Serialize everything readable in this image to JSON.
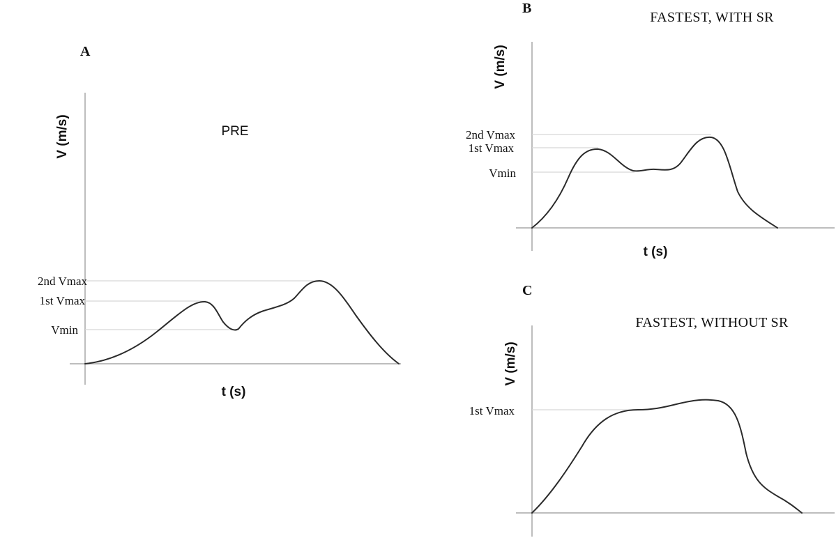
{
  "chart_data": [
    {
      "panel": "A",
      "type": "line",
      "title": "PRE",
      "xlabel": "t (s)",
      "ylabel": "V (m/s)",
      "reference_lines": [
        {
          "label": "2nd Vmax"
        },
        {
          "label": "1st Vmax"
        },
        {
          "label": "Vmin"
        }
      ],
      "grid": false
    },
    {
      "panel": "B",
      "type": "line",
      "title": "FASTEST, WITH SR",
      "xlabel": "t (s)",
      "ylabel": "V (m/s)",
      "reference_lines": [
        {
          "label": "2nd Vmax"
        },
        {
          "label": "1st Vmax"
        },
        {
          "label": "Vmin"
        }
      ],
      "grid": false
    },
    {
      "panel": "C",
      "type": "line",
      "title": "FASTEST, WITHOUT SR",
      "xlabel": "",
      "ylabel": "V (m/s)",
      "reference_lines": [
        {
          "label": "1st Vmax"
        }
      ],
      "grid": false
    }
  ]
}
